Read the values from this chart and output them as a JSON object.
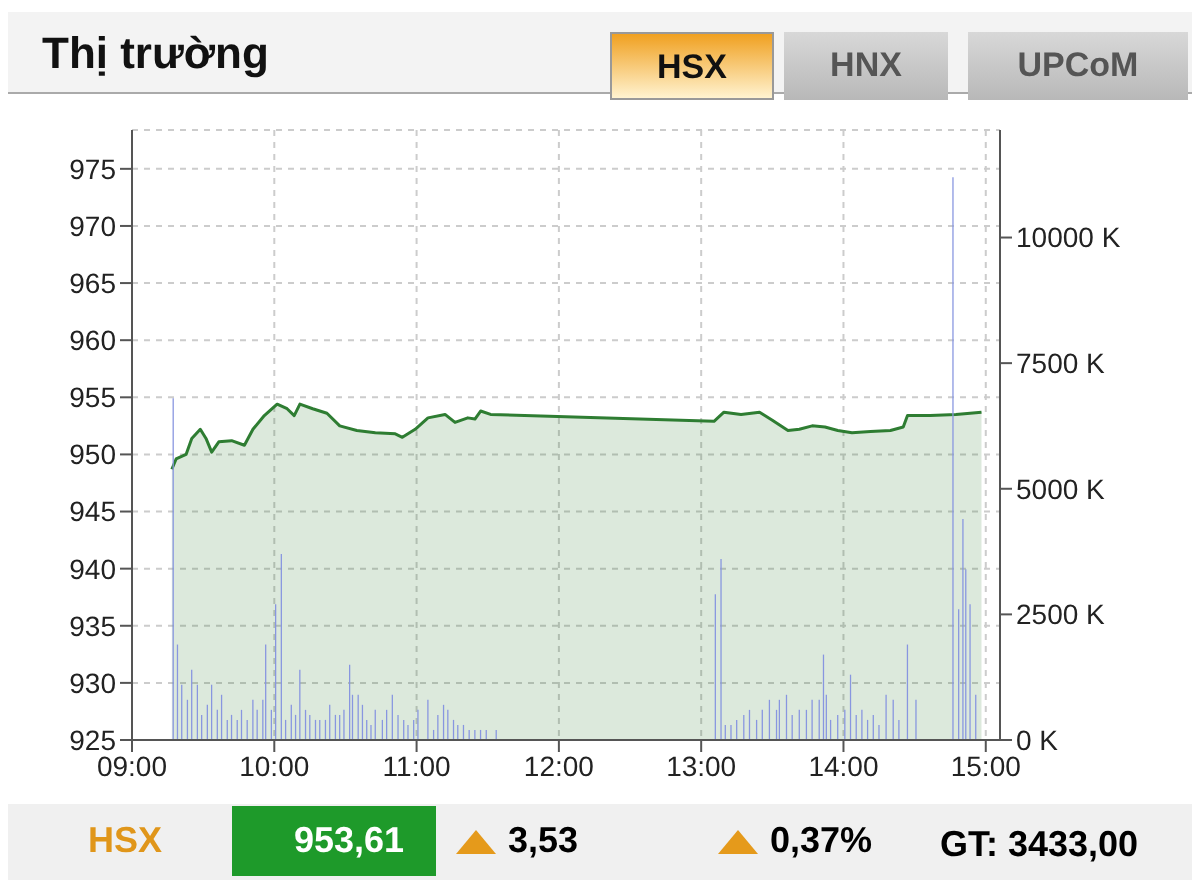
{
  "chart_data": {
    "type": "area",
    "title": "Thị trường",
    "annotations": [
      "HSX",
      "HNX",
      "UPCoM",
      "HSX",
      "953,61",
      "3,53",
      "0,37%",
      "GT: 3433,00"
    ],
    "xlim": [
      9,
      15.1
    ],
    "xticks": [
      {
        "value": 9,
        "label": "09:00"
      },
      {
        "value": 10,
        "label": "10:00"
      },
      {
        "value": 11,
        "label": "11:00"
      },
      {
        "value": 12,
        "label": "12:00"
      },
      {
        "value": 13,
        "label": "13:00"
      },
      {
        "value": 14,
        "label": "14:00"
      },
      {
        "value": 15,
        "label": "15:00"
      }
    ],
    "ylim": [
      925,
      978.4
    ],
    "yticks": [
      925,
      930,
      935,
      940,
      945,
      950,
      955,
      960,
      965,
      970,
      975
    ],
    "y2lim": [
      0,
      12140
    ],
    "y2ticks": [
      {
        "value": 0,
        "label": "0 K"
      },
      {
        "value": 2500,
        "label": "2500 K"
      },
      {
        "value": 5000,
        "label": "5000 K"
      },
      {
        "value": 7500,
        "label": "7500 K"
      },
      {
        "value": 10000,
        "label": "10000 K"
      }
    ],
    "grid": true,
    "legend": false,
    "series": [
      {
        "color": "#2e7d32",
        "x": [
          9.28,
          9.31,
          9.38,
          9.42,
          9.48,
          9.52,
          9.56,
          9.61,
          9.7,
          9.79,
          9.85,
          9.93,
          10.02,
          10.09,
          10.14,
          10.18,
          10.27,
          10.37,
          10.46,
          10.58,
          10.71,
          10.85,
          10.9,
          10.99,
          11.08,
          11.2,
          11.27,
          11.36,
          11.41,
          11.45,
          11.52,
          13.09,
          13.16,
          13.28,
          13.41,
          13.5,
          13.61,
          13.69,
          13.78,
          13.87,
          13.96,
          14.06,
          14.19,
          14.33,
          14.42,
          14.45,
          14.61,
          14.79,
          14.97
        ],
        "values": [
          948.7,
          949.6,
          950,
          951.4,
          952.2,
          951.4,
          950.2,
          951.1,
          951.2,
          950.8,
          952.2,
          953.4,
          954.4,
          954,
          953.4,
          954.4,
          954,
          953.6,
          952.5,
          952.1,
          951.9,
          951.8,
          951.5,
          952.2,
          953.2,
          953.5,
          952.8,
          953.2,
          953.1,
          953.8,
          953.5,
          952.9,
          953.7,
          953.5,
          953.7,
          953.0,
          952.1,
          952.2,
          952.5,
          952.4,
          952.1,
          951.9,
          952.0,
          952.1,
          952.4,
          953.4,
          953.4,
          953.5,
          953.7
        ]
      },
      {
        "type": "bar",
        "axis": "y2",
        "color": "#8896e0",
        "x": [
          9.29,
          9.32,
          9.35,
          9.39,
          9.42,
          9.46,
          9.49,
          9.53,
          9.56,
          9.6,
          9.63,
          9.67,
          9.7,
          9.74,
          9.77,
          9.81,
          9.85,
          9.88,
          9.92,
          9.94,
          9.98,
          10.01,
          10.05,
          10.08,
          10.12,
          10.15,
          10.18,
          10.22,
          10.25,
          10.29,
          10.32,
          10.36,
          10.39,
          10.43,
          10.46,
          10.49,
          10.53,
          10.55,
          10.59,
          10.62,
          10.65,
          10.68,
          10.71,
          10.76,
          10.79,
          10.83,
          10.87,
          10.91,
          10.94,
          10.98,
          11.01,
          11.08,
          11.12,
          11.15,
          11.19,
          11.22,
          11.26,
          11.29,
          11.33,
          11.37,
          11.41,
          11.45,
          11.49,
          11.56,
          13.1,
          13.14,
          13.17,
          13.21,
          13.25,
          13.3,
          13.34,
          13.39,
          13.43,
          13.48,
          13.53,
          13.55,
          13.6,
          13.64,
          13.69,
          13.74,
          13.78,
          13.83,
          13.86,
          13.88,
          13.91,
          13.96,
          14.01,
          14.05,
          14.09,
          14.13,
          14.17,
          14.21,
          14.25,
          14.3,
          14.35,
          14.39,
          14.45,
          14.51,
          14.77,
          14.81,
          14.84,
          14.86,
          14.89,
          14.93
        ],
        "values": [
          6800,
          1900,
          1100,
          800,
          1400,
          1100,
          500,
          700,
          1100,
          600,
          900,
          400,
          500,
          400,
          600,
          400,
          800,
          600,
          800,
          1900,
          600,
          2700,
          3700,
          400,
          700,
          500,
          1400,
          600,
          500,
          400,
          400,
          400,
          700,
          500,
          500,
          600,
          1500,
          900,
          900,
          700,
          400,
          300,
          600,
          400,
          600,
          900,
          500,
          400,
          300,
          400,
          600,
          800,
          200,
          500,
          700,
          600,
          400,
          300,
          300,
          200,
          200,
          200,
          200,
          200,
          2900,
          3600,
          300,
          300,
          400,
          500,
          600,
          400,
          600,
          800,
          600,
          800,
          900,
          500,
          600,
          600,
          800,
          800,
          1700,
          900,
          400,
          500,
          600,
          1300,
          500,
          600,
          400,
          500,
          300,
          900,
          800,
          400,
          1900,
          800,
          11200,
          2600,
          4400,
          3400,
          2700,
          900
        ]
      }
    ]
  }
}
